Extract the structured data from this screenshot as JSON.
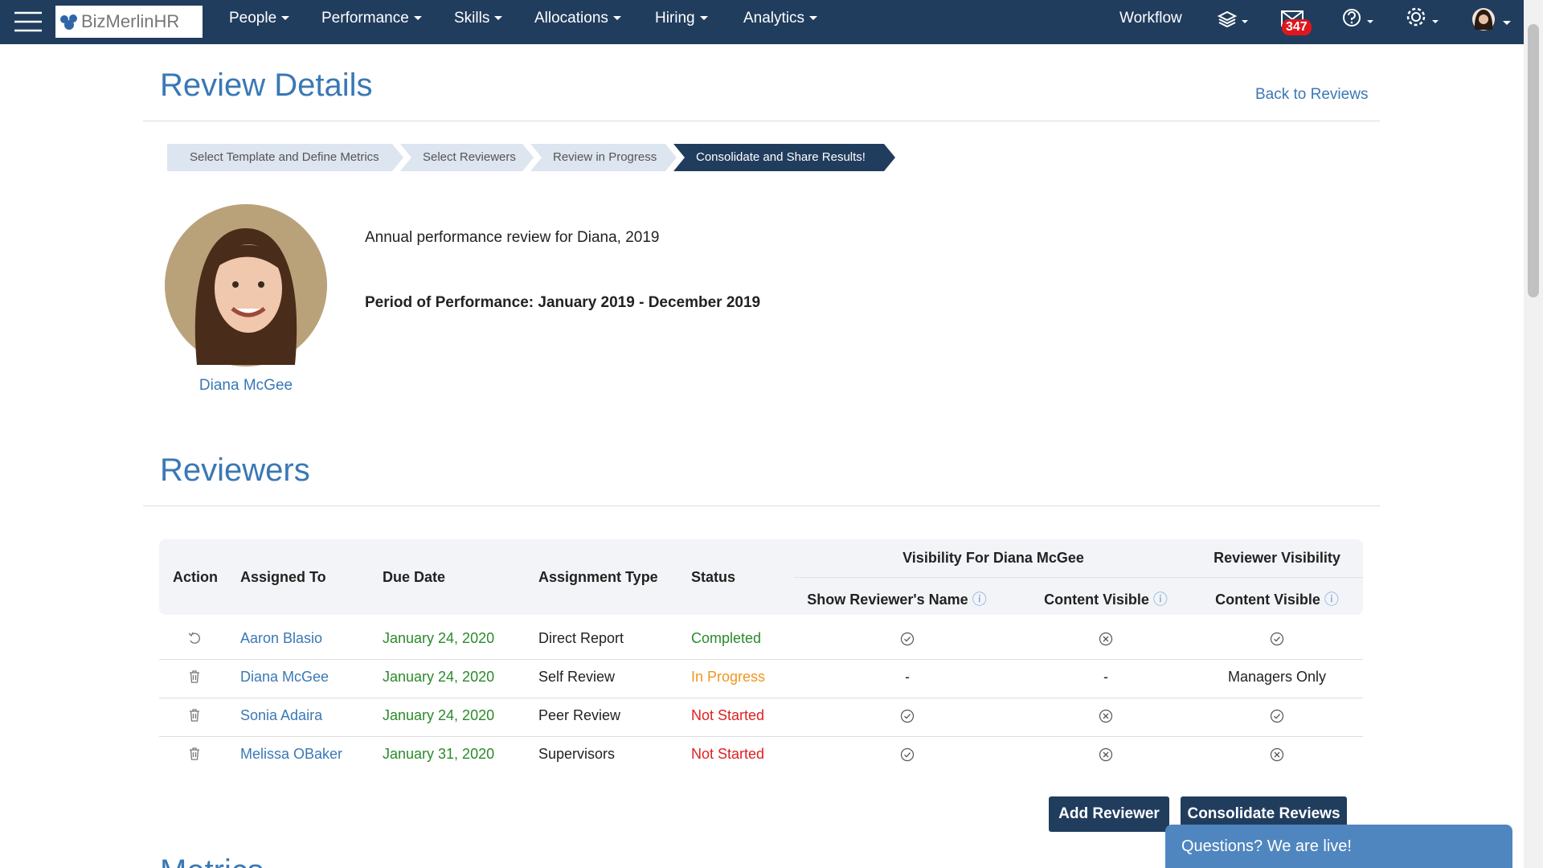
{
  "nav": {
    "logo": "BizMerlinHR",
    "items": [
      "People",
      "Performance",
      "Skills",
      "Allocations",
      "Hiring",
      "Analytics"
    ],
    "workflow": "Workflow",
    "badge": "347"
  },
  "header": {
    "title": "Review Details",
    "back": "Back to Reviews"
  },
  "steps": [
    "Select Template and Define Metrics",
    "Select Reviewers",
    "Review in Progress",
    "Consolidate and Share Results!"
  ],
  "profile": {
    "name": "Diana McGee",
    "description": "Annual performance review for Diana, 2019",
    "period": "Period of Performance: January 2019 - December 2019"
  },
  "reviewers": {
    "title": "Reviewers",
    "headers": [
      "Action",
      "Assigned To",
      "Due Date",
      "Assignment Type",
      "Status"
    ],
    "groups": [
      "Visibility For Diana McGee",
      "Reviewer Visibility"
    ],
    "subheaders": [
      "Show Reviewer's Name",
      "Content Visible",
      "Content Visible"
    ],
    "rows": [
      {
        "name": "Aaron Blasio",
        "due": "January 24, 2020",
        "type": "Direct Report",
        "status": "Completed"
      },
      {
        "name": "Diana McGee",
        "due": "January 24, 2020",
        "type": "Self Review",
        "status": "In Progress",
        "visibility": [
          "-",
          "-",
          "Managers Only"
        ]
      },
      {
        "name": "Sonia Adaira",
        "due": "January 24, 2020",
        "type": "Peer Review",
        "status": "Not Started"
      },
      {
        "name": "Melissa OBaker",
        "due": "January 31, 2020",
        "type": "Supervisors",
        "status": "Not Started"
      }
    ],
    "buttons": [
      "Add Reviewer",
      "Consolidate Reviews"
    ]
  },
  "metrics": {
    "title": "Metrics"
  },
  "chat": "Questions? We are live!"
}
